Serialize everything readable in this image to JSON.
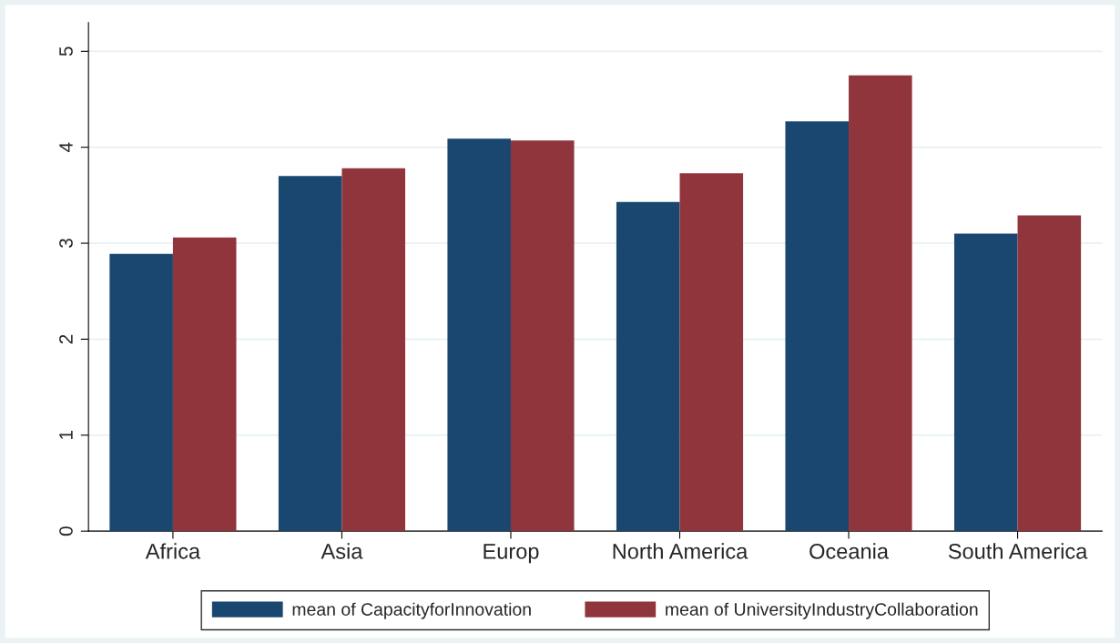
{
  "chart_data": {
    "type": "bar",
    "categories": [
      "Africa",
      "Asia",
      "Europ",
      "North America",
      "Oceania",
      "South America"
    ],
    "series": [
      {
        "name": "mean of CapacityforInnovation",
        "color": "#1a476f",
        "values": [
          2.89,
          3.7,
          4.09,
          3.43,
          4.27,
          3.1
        ]
      },
      {
        "name": "mean of UniversityIndustryCollaboration",
        "color": "#90353b",
        "values": [
          3.06,
          3.78,
          4.07,
          3.73,
          4.75,
          3.29
        ]
      }
    ],
    "ylim": [
      0,
      5.3
    ],
    "yticks": [
      0,
      1,
      2,
      3,
      4,
      5
    ],
    "grid": "y",
    "legend": "bottom"
  }
}
